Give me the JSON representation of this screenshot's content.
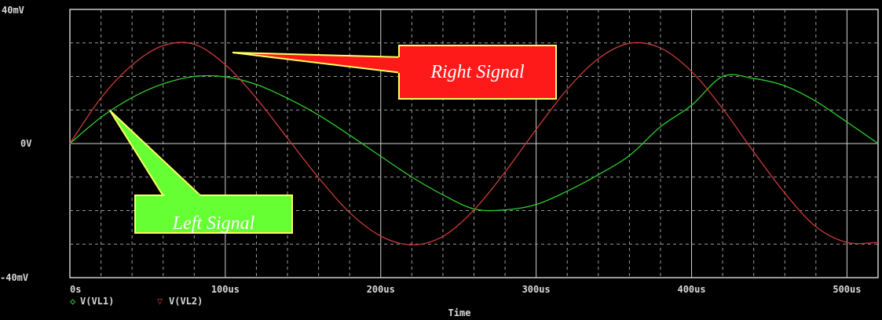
{
  "chart_data": {
    "type": "line",
    "xlabel": "Time",
    "x_ticks": [
      "0s",
      "100us",
      "200us",
      "300us",
      "400us",
      "500us"
    ],
    "y_ticks": [
      "40mV",
      "0V",
      "-40mV"
    ],
    "xlim": [
      0,
      520
    ],
    "ylim": [
      -40,
      40
    ],
    "x_unit": "us",
    "y_unit": "mV",
    "grid": true,
    "series": [
      {
        "name": "V(VL1)",
        "marker": "diamond",
        "color": "#2ecc2e",
        "x": [
          0,
          20,
          40,
          60,
          80,
          100,
          120,
          140,
          160,
          180,
          200,
          220,
          240,
          260,
          280,
          300,
          320,
          340,
          360,
          380,
          400,
          420,
          440,
          460,
          480,
          500,
          520
        ],
        "y": [
          0,
          7.8,
          13.7,
          17.8,
          20,
          19.9,
          17.6,
          13.5,
          8.5,
          2.5,
          -3.8,
          -10,
          -15.3,
          -19.5,
          -19.8,
          -18.2,
          -14.2,
          -9.3,
          -3.6,
          5,
          11.4,
          20,
          19.4,
          17.2,
          12.6,
          6.4,
          0
        ]
      },
      {
        "name": "V(VL2)",
        "marker": "triangle-down",
        "color": "#cc3a3a",
        "x": [
          0,
          20,
          40,
          60,
          80,
          100,
          120,
          140,
          160,
          180,
          200,
          220,
          240,
          260,
          280,
          300,
          320,
          340,
          360,
          380,
          400,
          420,
          440,
          460,
          480,
          500,
          520
        ],
        "y": [
          0,
          13.6,
          23.4,
          29.2,
          29.6,
          23.5,
          13.5,
          1.6,
          -10.2,
          -20.6,
          -27.6,
          -30.2,
          -27.7,
          -19.8,
          -8.5,
          4.2,
          16.2,
          25.3,
          29.9,
          28.5,
          21.5,
          10.4,
          -2.5,
          -14.8,
          -24.8,
          -29.5,
          -29.5
        ]
      }
    ],
    "annotations": [
      {
        "text": "Right Signal",
        "points_to": {
          "x": 98,
          "y": 27.5
        },
        "fill": "#ff1a1a",
        "border": "#ffff66"
      },
      {
        "text": "Left Signal",
        "points_to": {
          "x": 24,
          "y": 10
        },
        "fill": "#66ff33",
        "border": "#ffff66"
      }
    ]
  }
}
